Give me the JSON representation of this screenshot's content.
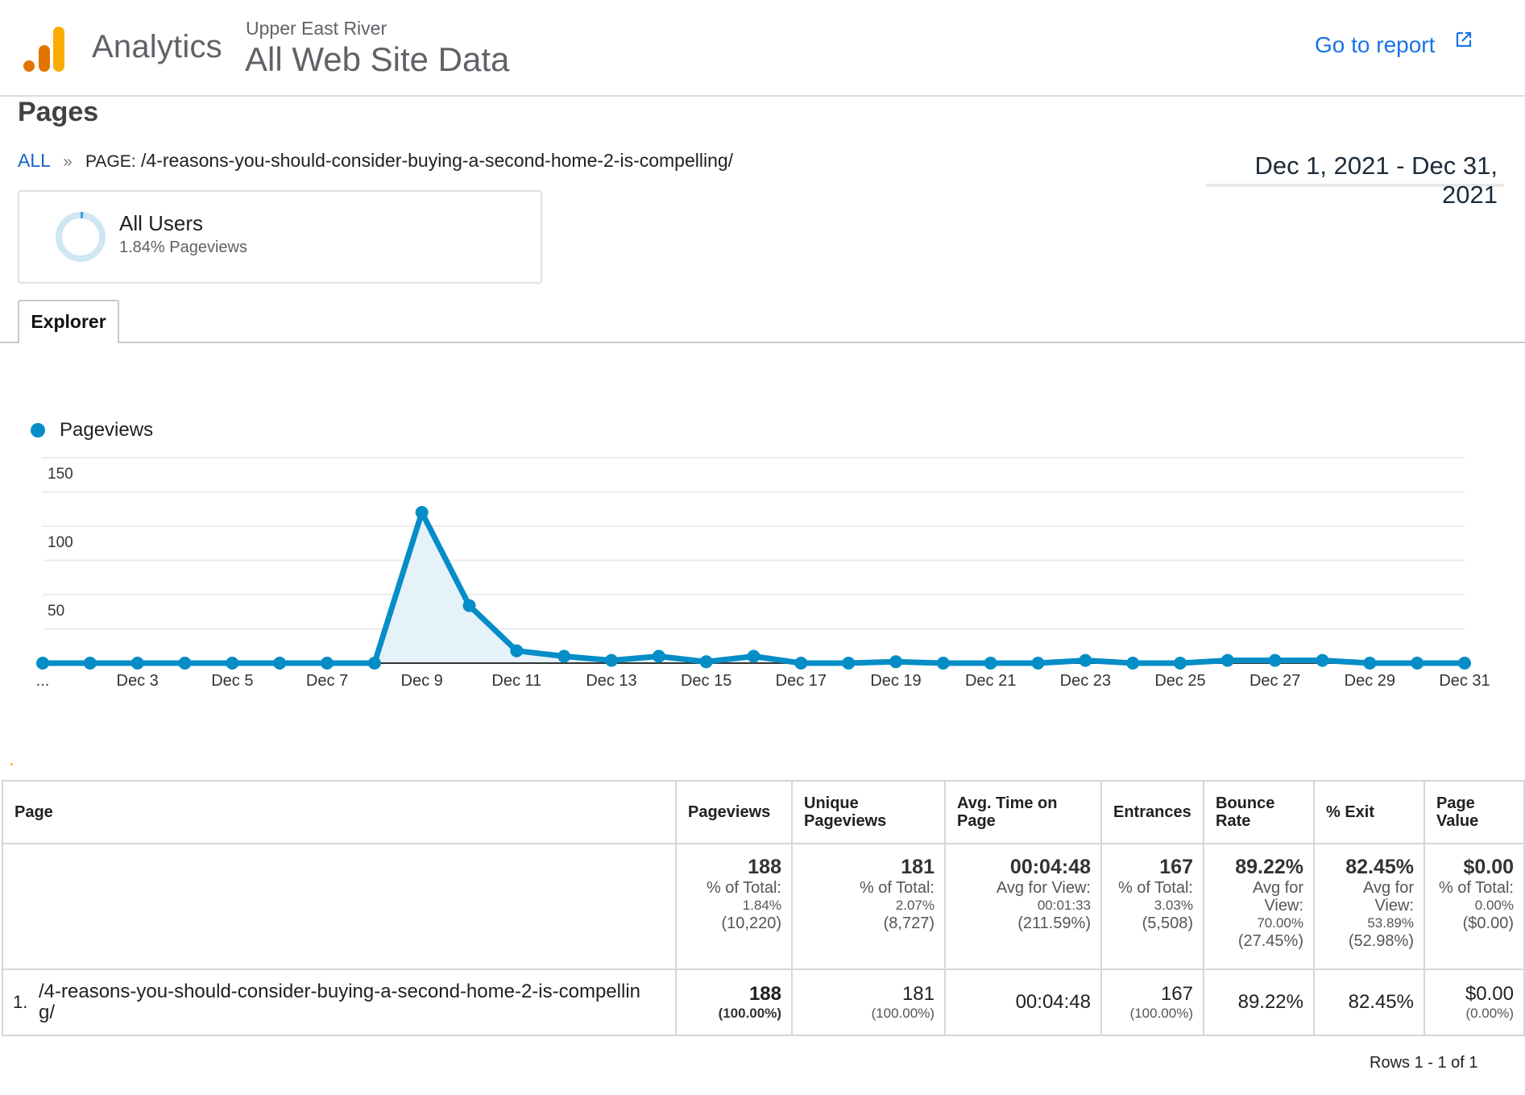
{
  "header": {
    "app_name": "Analytics",
    "account": "Upper East River",
    "property": "All Web Site Data",
    "go_to_report": "Go to report",
    "logo_colors": [
      "#e37400",
      "#e37400",
      "#f9ab00"
    ]
  },
  "page": {
    "title": "Pages",
    "breadcrumb": {
      "root": "ALL",
      "separator": "»",
      "label": "PAGE:",
      "value": "/4-reasons-you-should-consider-buying-a-second-home-2-is-compelling/"
    },
    "date_range": "Dec 1, 2021 - Dec 31, 2021"
  },
  "segment": {
    "name": "All Users",
    "subtitle": "1.84% Pageviews",
    "percent": 1.84
  },
  "tabs": [
    {
      "label": "Explorer",
      "active": true
    }
  ],
  "chart_data": {
    "type": "line",
    "title": "",
    "legend": [
      {
        "name": "Pageviews",
        "color": "#058dc7"
      }
    ],
    "legend_position": "top-left",
    "xlabel": "",
    "ylabel": "",
    "ylim": [
      0,
      150
    ],
    "yticks": [
      50,
      100,
      150
    ],
    "grid": true,
    "x": [
      "Dec 1",
      "Dec 2",
      "Dec 3",
      "Dec 4",
      "Dec 5",
      "Dec 6",
      "Dec 7",
      "Dec 8",
      "Dec 9",
      "Dec 10",
      "Dec 11",
      "Dec 12",
      "Dec 13",
      "Dec 14",
      "Dec 15",
      "Dec 16",
      "Dec 17",
      "Dec 18",
      "Dec 19",
      "Dec 20",
      "Dec 21",
      "Dec 22",
      "Dec 23",
      "Dec 24",
      "Dec 25",
      "Dec 26",
      "Dec 27",
      "Dec 28",
      "Dec 29",
      "Dec 30",
      "Dec 31"
    ],
    "xtick_labels": [
      "...",
      "",
      "Dec 3",
      "",
      "Dec 5",
      "",
      "Dec 7",
      "",
      "Dec 9",
      "",
      "Dec 11",
      "",
      "Dec 13",
      "",
      "Dec 15",
      "",
      "Dec 17",
      "",
      "Dec 19",
      "",
      "Dec 21",
      "",
      "Dec 23",
      "",
      "Dec 25",
      "",
      "Dec 27",
      "",
      "Dec 29",
      "",
      "Dec 31"
    ],
    "series": [
      {
        "name": "Pageviews",
        "color": "#058dc7",
        "values": [
          0,
          0,
          0,
          0,
          0,
          0,
          0,
          0,
          110,
          42,
          9,
          5,
          2,
          5,
          1,
          5,
          0,
          0,
          1,
          0,
          0,
          0,
          2,
          0,
          0,
          2,
          2,
          2,
          0,
          0,
          0
        ]
      }
    ]
  },
  "table": {
    "columns": [
      "Page",
      "Pageviews",
      "Unique Pageviews",
      "Avg. Time on Page",
      "Entrances",
      "Bounce Rate",
      "% Exit",
      "Page Value"
    ],
    "totals": [
      {
        "main": "188",
        "label": "% of Total:",
        "sub1": "1.84%",
        "sub2": "(10,220)"
      },
      {
        "main": "181",
        "label": "% of Total:",
        "sub1": "2.07%",
        "sub2": "(8,727)"
      },
      {
        "main": "00:04:48",
        "label": "Avg for View:",
        "sub1": "00:01:33",
        "sub2": "(211.59%)"
      },
      {
        "main": "167",
        "label": "% of Total:",
        "sub1": "3.03%",
        "sub2": "(5,508)"
      },
      {
        "main": "89.22%",
        "label": "Avg for View:",
        "sub1": "70.00%",
        "sub2": "(27.45%)"
      },
      {
        "main": "82.45%",
        "label": "Avg for View:",
        "sub1": "53.89%",
        "sub2": "(52.98%)"
      },
      {
        "main": "$0.00",
        "label": "% of Total:",
        "sub1": "0.00%",
        "sub2": "($0.00)"
      }
    ],
    "rows": [
      {
        "index": "1.",
        "page": "/4-reasons-you-should-consider-buying-a-second-home-2-is-compelling/",
        "cells": [
          {
            "main": "188",
            "sub": "(100.00%)"
          },
          {
            "main": "181",
            "sub": "(100.00%)"
          },
          {
            "main": "00:04:48",
            "sub": ""
          },
          {
            "main": "167",
            "sub": "(100.00%)"
          },
          {
            "main": "89.22%",
            "sub": ""
          },
          {
            "main": "82.45%",
            "sub": ""
          },
          {
            "main": "$0.00",
            "sub": "(0.00%)"
          }
        ]
      }
    ],
    "rows_info": "Rows 1 - 1 of 1"
  }
}
